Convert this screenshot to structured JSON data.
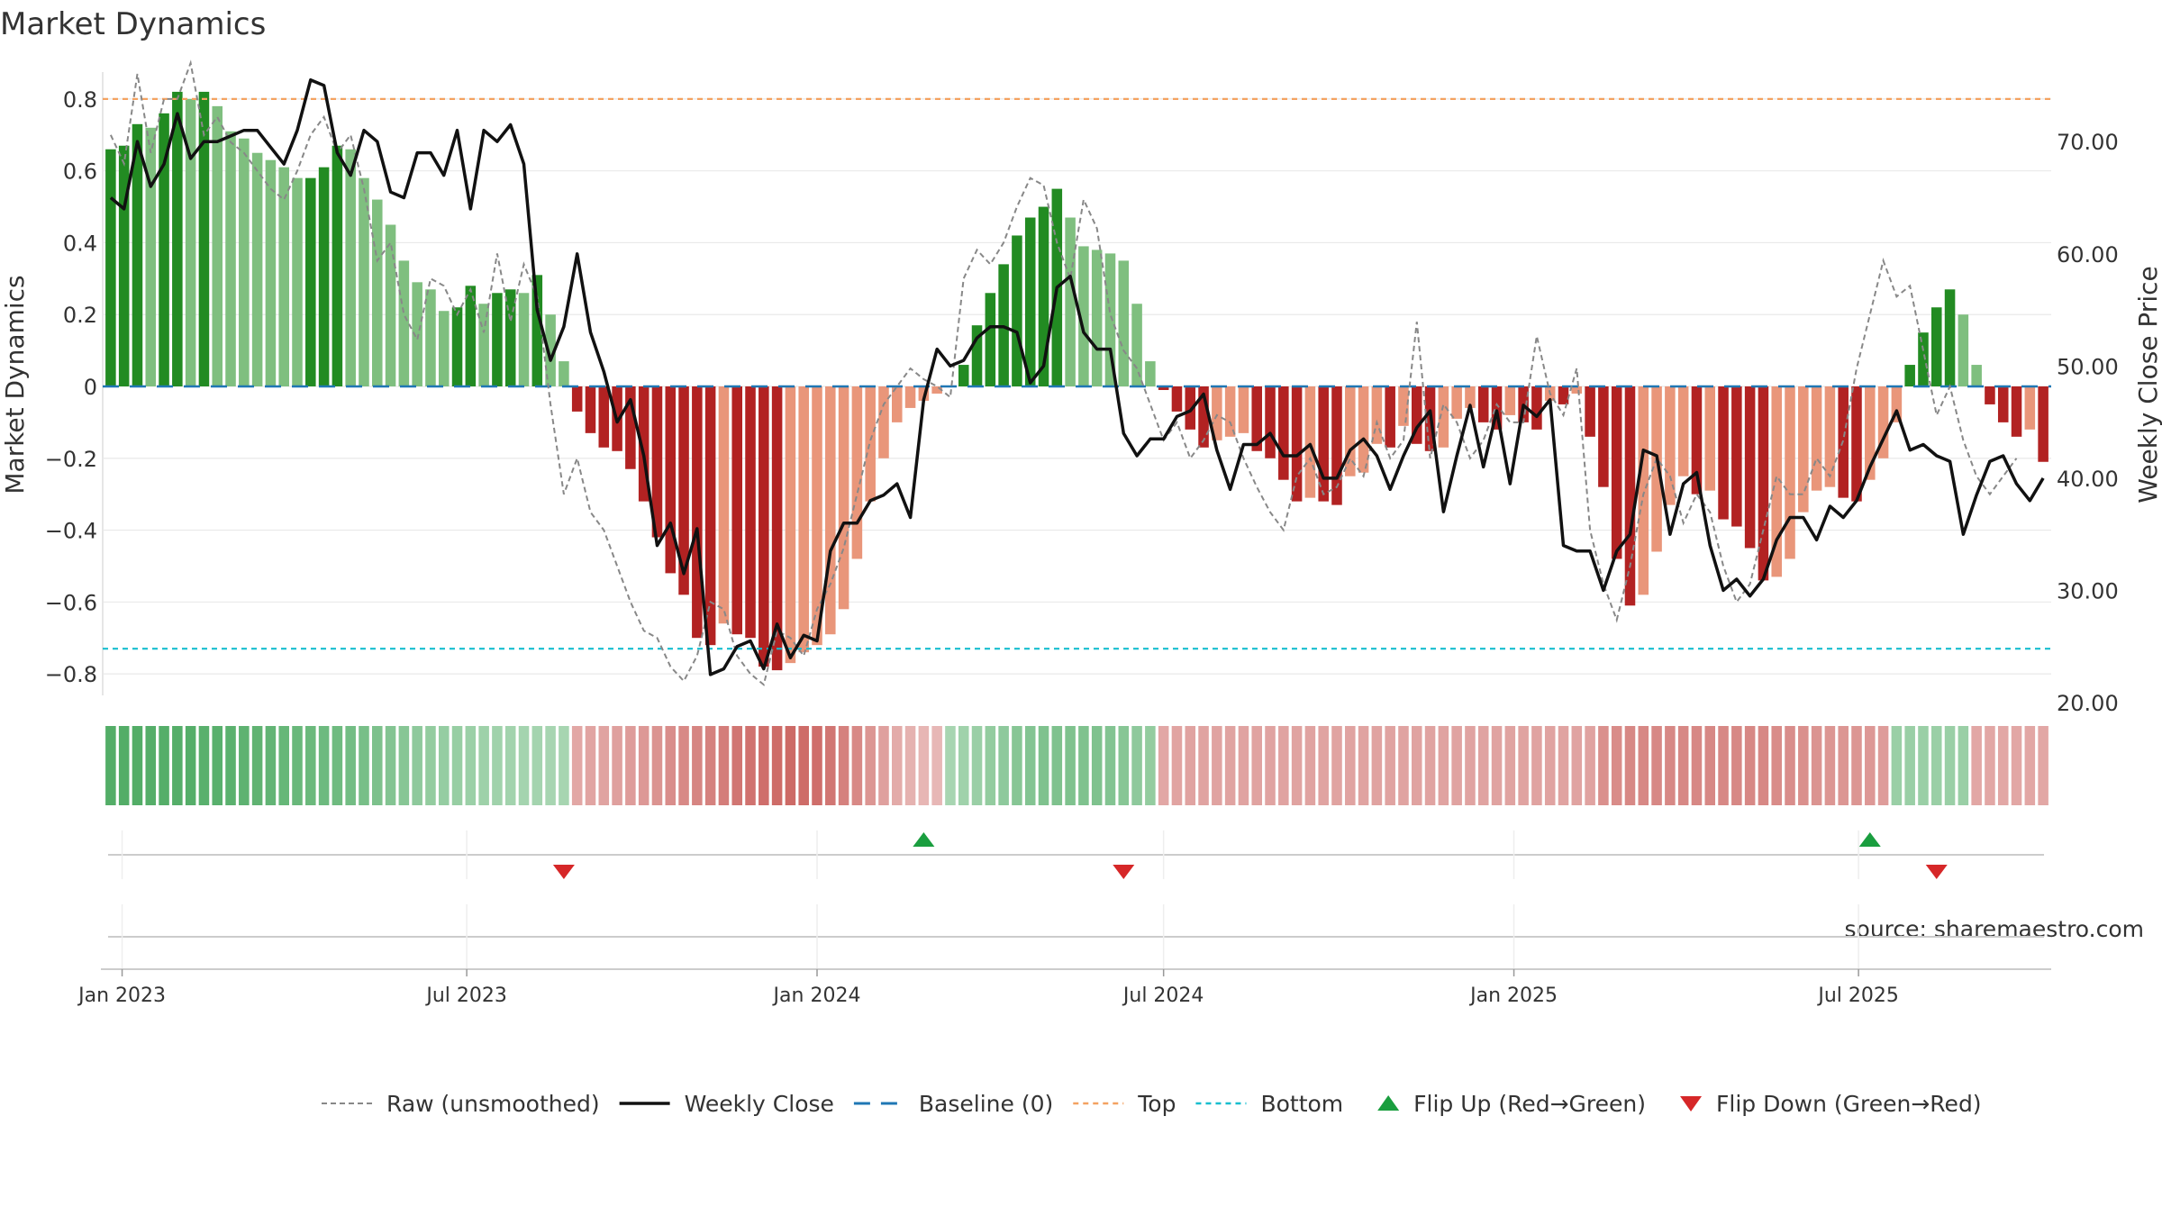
{
  "chart_data": {
    "type": "bar",
    "title": "Market Dynamics",
    "ylabel_left": "Market Dynamics",
    "ylabel_right": "Weekly Close Price",
    "source": "source: sharemaestro.com",
    "x_start": "2022-12-26",
    "x_step_days": 7,
    "x_ticks": [
      {
        "date": "2023-01-01",
        "label": "Jan 2023"
      },
      {
        "date": "2023-07-01",
        "label": "Jul 2023"
      },
      {
        "date": "2024-01-01",
        "label": "Jan 2024"
      },
      {
        "date": "2024-07-01",
        "label": "Jul 2024"
      },
      {
        "date": "2025-01-01",
        "label": "Jan 2025"
      },
      {
        "date": "2025-07-01",
        "label": "Jul 2025"
      }
    ],
    "y_left": {
      "min": -0.88,
      "max": 0.9,
      "ticks": [
        -0.8,
        -0.6,
        -0.4,
        -0.2,
        0,
        0.2,
        0.4,
        0.6,
        0.8
      ],
      "tick_labels": [
        "−0.8",
        "−0.6",
        "−0.4",
        "−0.2",
        "0",
        "0.2",
        "0.4",
        "0.6",
        "0.8"
      ]
    },
    "y_right": {
      "min": 20,
      "max": 77,
      "ticks": [
        20,
        30,
        40,
        50,
        60,
        70
      ],
      "tick_labels": [
        "20.00",
        "30.00",
        "40.00",
        "50.00",
        "60.00",
        "70.00"
      ]
    },
    "top_level": 0.8,
    "bottom_level": -0.73,
    "grid": true,
    "legend_position": "bottom",
    "colors": {
      "strong_green": "#228b22",
      "light_green": "#7fbf7f",
      "strong_red": "#b22222",
      "light_red": "#e9967a",
      "close": "#111111",
      "raw": "#888888",
      "baseline": "#1f77b4",
      "top": "#f4a261",
      "bottom": "#17becf",
      "flip_up": "#1a9e3f",
      "flip_down": "#d62728"
    },
    "series": [
      {
        "name": "Market Dynamics (smoothed)",
        "values": [
          0.66,
          0.67,
          0.73,
          0.72,
          0.76,
          0.82,
          0.8,
          0.82,
          0.78,
          0.71,
          0.69,
          0.65,
          0.63,
          0.61,
          0.58,
          0.58,
          0.61,
          0.67,
          0.66,
          0.58,
          0.52,
          0.45,
          0.35,
          0.29,
          0.27,
          0.21,
          0.22,
          0.28,
          0.23,
          0.26,
          0.27,
          0.26,
          0.31,
          0.2,
          0.07,
          -0.07,
          -0.13,
          -0.17,
          -0.18,
          -0.23,
          -0.32,
          -0.42,
          -0.52,
          -0.58,
          -0.7,
          -0.72,
          -0.66,
          -0.69,
          -0.7,
          -0.78,
          -0.79,
          -0.77,
          -0.74,
          -0.72,
          -0.69,
          -0.62,
          -0.48,
          -0.32,
          -0.2,
          -0.1,
          -0.06,
          -0.04,
          -0.02,
          0.0,
          0.06,
          0.17,
          0.26,
          0.34,
          0.42,
          0.47,
          0.5,
          0.55,
          0.47,
          0.39,
          0.38,
          0.37,
          0.35,
          0.23,
          0.07,
          -0.01,
          -0.07,
          -0.12,
          -0.17,
          -0.15,
          -0.14,
          -0.13,
          -0.18,
          -0.2,
          -0.26,
          -0.32,
          -0.31,
          -0.32,
          -0.33,
          -0.25,
          -0.24,
          -0.16,
          -0.17,
          -0.11,
          -0.16,
          -0.18,
          -0.17,
          -0.09,
          -0.06,
          -0.1,
          -0.12,
          -0.08,
          -0.1,
          -0.12,
          -0.04,
          -0.05,
          -0.02,
          -0.14,
          -0.28,
          -0.48,
          -0.61,
          -0.58,
          -0.46,
          -0.33,
          -0.25,
          -0.3,
          -0.29,
          -0.37,
          -0.39,
          -0.45,
          -0.54,
          -0.53,
          -0.48,
          -0.35,
          -0.29,
          -0.28,
          -0.31,
          -0.32,
          -0.26,
          -0.2,
          -0.1,
          0.06,
          0.15,
          0.22,
          0.27,
          0.2,
          0.06,
          -0.05,
          -0.1,
          -0.14,
          -0.12,
          -0.21
        ]
      },
      {
        "name": "Raw (unsmoothed)",
        "values": [
          0.7,
          0.62,
          0.87,
          0.65,
          0.8,
          0.8,
          0.9,
          0.7,
          0.75,
          0.68,
          0.65,
          0.6,
          0.55,
          0.52,
          0.6,
          0.7,
          0.75,
          0.65,
          0.7,
          0.55,
          0.35,
          0.4,
          0.2,
          0.13,
          0.3,
          0.28,
          0.2,
          0.27,
          0.15,
          0.37,
          0.18,
          0.34,
          0.25,
          -0.05,
          -0.3,
          -0.2,
          -0.35,
          -0.4,
          -0.5,
          -0.6,
          -0.68,
          -0.7,
          -0.78,
          -0.82,
          -0.75,
          -0.6,
          -0.62,
          -0.75,
          -0.8,
          -0.83,
          -0.68,
          -0.7,
          -0.75,
          -0.62,
          -0.55,
          -0.45,
          -0.3,
          -0.15,
          -0.05,
          0.0,
          0.05,
          0.02,
          0.0,
          -0.03,
          0.3,
          0.38,
          0.34,
          0.4,
          0.5,
          0.58,
          0.56,
          0.4,
          0.3,
          0.52,
          0.44,
          0.2,
          0.1,
          0.05,
          -0.05,
          -0.15,
          -0.1,
          -0.2,
          -0.15,
          -0.08,
          -0.1,
          -0.2,
          -0.28,
          -0.35,
          -0.4,
          -0.25,
          -0.2,
          -0.3,
          -0.28,
          -0.2,
          -0.25,
          -0.1,
          -0.2,
          -0.15,
          0.18,
          -0.2,
          -0.05,
          -0.1,
          -0.2,
          -0.15,
          -0.05,
          -0.1,
          -0.1,
          0.14,
          -0.02,
          -0.08,
          0.05,
          -0.4,
          -0.55,
          -0.65,
          -0.5,
          -0.3,
          -0.2,
          -0.25,
          -0.38,
          -0.3,
          -0.35,
          -0.5,
          -0.6,
          -0.55,
          -0.4,
          -0.25,
          -0.3,
          -0.3,
          -0.2,
          -0.25,
          -0.15,
          0.05,
          0.2,
          0.35,
          0.25,
          0.28,
          0.1,
          -0.08,
          0.0,
          -0.15,
          -0.25,
          -0.3,
          -0.25,
          -0.2
        ]
      },
      {
        "name": "Weekly Close",
        "values": [
          65.0,
          64.0,
          70.0,
          66.0,
          68.0,
          72.5,
          68.5,
          70.0,
          70.0,
          70.5,
          71.0,
          71.0,
          69.5,
          68.0,
          71.0,
          75.5,
          75.0,
          69.0,
          67.0,
          71.0,
          70.0,
          65.5,
          65.0,
          69.0,
          69.0,
          67.0,
          71.0,
          64.0,
          71.0,
          70.0,
          71.5,
          68.0,
          55.0,
          50.5,
          53.5,
          60.0,
          53.0,
          49.5,
          45.0,
          47.0,
          42.0,
          34.0,
          36.0,
          31.5,
          35.5,
          22.5,
          23.0,
          25.0,
          25.5,
          23.0,
          27.0,
          24.0,
          26.0,
          25.5,
          33.5,
          36.0,
          36.0,
          38.0,
          38.5,
          39.5,
          36.5,
          47.0,
          51.5,
          50.0,
          50.5,
          52.5,
          53.5,
          53.5,
          53.0,
          48.5,
          50.0,
          57.0,
          58.0,
          53.0,
          51.5,
          51.5,
          44.0,
          42.0,
          43.5,
          43.5,
          45.5,
          46.0,
          47.5,
          42.5,
          39.0,
          43.0,
          43.0,
          44.0,
          42.0,
          42.0,
          43.0,
          40.0,
          40.0,
          42.5,
          43.5,
          42.0,
          39.0,
          42.0,
          44.5,
          46.0,
          37.0,
          42.0,
          46.5,
          41.0,
          46.0,
          39.5,
          46.5,
          45.5,
          47.0,
          34.0,
          33.5,
          33.5,
          30.0,
          33.5,
          35.0,
          42.5,
          42.0,
          35.0,
          39.5,
          40.5,
          34.0,
          30.0,
          31.0,
          29.5,
          31.0,
          34.5,
          36.5,
          36.5,
          34.5,
          37.5,
          36.5,
          38.0,
          41.0,
          43.5,
          46.0,
          42.5,
          43.0,
          42.0,
          41.5,
          35.0,
          38.5,
          41.5,
          42.0,
          39.5,
          38.0,
          40.0
        ]
      }
    ],
    "strength_strip": [
      0.88,
      0.88,
      0.88,
      0.86,
      0.86,
      0.86,
      0.86,
      0.84,
      0.84,
      0.82,
      0.8,
      0.78,
      0.76,
      0.74,
      0.72,
      0.7,
      0.68,
      0.66,
      0.64,
      0.6,
      0.56,
      0.52,
      0.48,
      0.44,
      0.4,
      0.38,
      0.36,
      0.34,
      0.32,
      0.3,
      0.28,
      0.27,
      0.26,
      0.25,
      0.25,
      -0.3,
      -0.32,
      -0.34,
      -0.36,
      -0.4,
      -0.44,
      -0.48,
      -0.52,
      -0.56,
      -0.6,
      -0.64,
      -0.68,
      -0.72,
      -0.76,
      -0.8,
      -0.82,
      -0.84,
      -0.82,
      -0.8,
      -0.72,
      -0.64,
      -0.56,
      -0.46,
      -0.36,
      -0.28,
      -0.22,
      -0.18,
      -0.16,
      0.25,
      0.3,
      0.35,
      0.4,
      0.44,
      0.48,
      0.52,
      0.55,
      0.55,
      0.55,
      0.55,
      0.55,
      0.52,
      0.48,
      0.44,
      0.4,
      -0.3,
      -0.32,
      -0.34,
      -0.34,
      -0.34,
      -0.34,
      -0.34,
      -0.34,
      -0.34,
      -0.34,
      -0.34,
      -0.34,
      -0.34,
      -0.34,
      -0.34,
      -0.34,
      -0.34,
      -0.34,
      -0.34,
      -0.34,
      -0.34,
      -0.34,
      -0.34,
      -0.34,
      -0.34,
      -0.34,
      -0.34,
      -0.34,
      -0.34,
      -0.34,
      -0.34,
      -0.34,
      -0.34,
      -0.5,
      -0.55,
      -0.58,
      -0.58,
      -0.58,
      -0.58,
      -0.58,
      -0.58,
      -0.58,
      -0.58,
      -0.58,
      -0.58,
      -0.58,
      -0.55,
      -0.52,
      -0.5,
      -0.48,
      -0.46,
      -0.46,
      -0.46,
      -0.44,
      -0.4,
      0.35,
      0.35,
      0.35,
      0.35,
      0.35,
      0.35,
      -0.3,
      -0.3,
      -0.3,
      -0.3,
      -0.3,
      -0.3
    ],
    "flip_up_dates": [
      "2024-02-26",
      "2025-07-07"
    ],
    "flip_down_dates": [
      "2023-08-21",
      "2024-06-10",
      "2025-08-11"
    ],
    "legend": [
      {
        "label": "Raw (unsmoothed)",
        "style": "raw"
      },
      {
        "label": "Weekly Close",
        "style": "close"
      },
      {
        "label": "Baseline (0)",
        "style": "baseline"
      },
      {
        "label": "Top",
        "style": "top"
      },
      {
        "label": "Bottom",
        "style": "bottom"
      },
      {
        "label": "Flip Up (Red→Green)",
        "style": "flip_up"
      },
      {
        "label": "Flip Down (Green→Red)",
        "style": "flip_down"
      }
    ]
  }
}
